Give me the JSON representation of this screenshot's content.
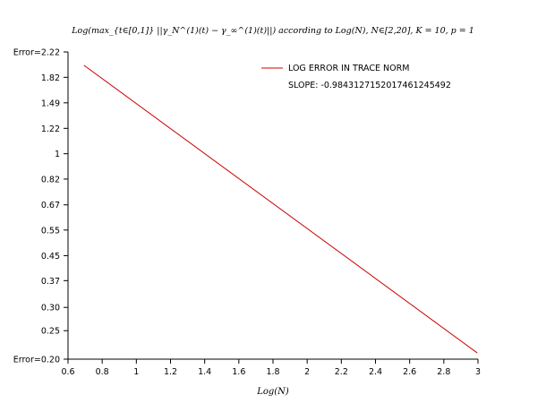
{
  "chart_data": {
    "type": "line",
    "title": "Log(max_{t∈[0,1]} ||γ_N^(1)(t) − γ_∞^(1)(t)||) according to Log(N), N∈[2,20], K = 10, p = 1",
    "xlabel": "Log(N)",
    "ylabel": "",
    "xlim": [
      0.6,
      3.0
    ],
    "ylim": [
      0.2,
      2.22
    ],
    "y_scale": "log",
    "x_ticks": [
      "0.6",
      "0.8",
      "1",
      "1.2",
      "1.4",
      "1.6",
      "1.8",
      "2",
      "2.2",
      "2.4",
      "2.6",
      "2.8",
      "3"
    ],
    "y_ticks": [
      {
        "value": 0.2,
        "label": "Error=0.20"
      },
      {
        "value": 0.25,
        "label": "0.25"
      },
      {
        "value": 0.3,
        "label": "0.30"
      },
      {
        "value": 0.37,
        "label": "0.37"
      },
      {
        "value": 0.45,
        "label": "0.45"
      },
      {
        "value": 0.55,
        "label": "0.55"
      },
      {
        "value": 0.67,
        "label": "0.67"
      },
      {
        "value": 0.82,
        "label": "0.82"
      },
      {
        "value": 1.0,
        "label": "1"
      },
      {
        "value": 1.22,
        "label": "1.22"
      },
      {
        "value": 1.49,
        "label": "1.49"
      },
      {
        "value": 1.82,
        "label": "1.82"
      },
      {
        "value": 2.22,
        "label": "Error=2.22"
      }
    ],
    "series": [
      {
        "name": "LOG ERROR IN TRACE NORM",
        "color": "#cc0000",
        "x": [
          0.693,
          2.996
        ],
        "y": [
          2.0,
          0.21
        ]
      }
    ],
    "legend": {
      "position": "top-right",
      "entries": [
        "LOG ERROR IN TRACE NORM"
      ],
      "slope_text": "SLOPE: -0.98431271520174612454​92"
    },
    "grid": false
  }
}
